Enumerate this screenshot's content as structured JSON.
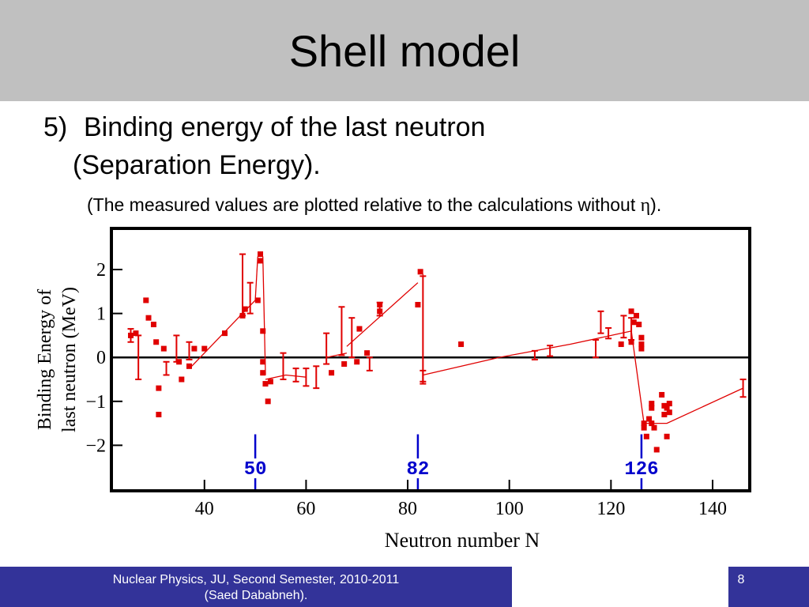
{
  "slide": {
    "title": "Shell model",
    "item_number": "5)",
    "heading_line1": "Binding energy of the last neutron",
    "heading_line2": "(Separation Energy).",
    "note_prefix": "(The measured values are plotted relative to the calculations without ",
    "note_symbol": "η",
    "note_suffix": ")."
  },
  "footer": {
    "line1": "Nuclear Physics, JU, Second Semester, 2010-2011",
    "line2": "(Saed Dababneh).",
    "page_number": "8"
  },
  "colors": {
    "data": "#e00000",
    "magic": "#0000cc",
    "axis": "#000000",
    "title_bar": "#c0c0c0",
    "footer_bar": "#333399"
  },
  "chart_data": {
    "type": "scatter",
    "xlabel": "Neutron number N",
    "ylabel_line1": "Binding Energy of",
    "ylabel_line2": "last neutron (MeV)",
    "xlim": [
      22,
      147
    ],
    "ylim": [
      -3,
      2.9
    ],
    "xticks": [
      40,
      60,
      80,
      100,
      120,
      140
    ],
    "yticks": [
      -2,
      -1,
      0,
      1,
      2
    ],
    "zero_line": true,
    "magic_numbers": [
      {
        "n": 50,
        "label": "50"
      },
      {
        "n": 82,
        "label": "82"
      },
      {
        "n": 126,
        "label": "126"
      }
    ],
    "points": [
      [
        25.5,
        0.5
      ],
      [
        26.5,
        0.55
      ],
      [
        28.5,
        1.3
      ],
      [
        29,
        0.9
      ],
      [
        30,
        0.75
      ],
      [
        30.5,
        0.35
      ],
      [
        31,
        -0.7
      ],
      [
        31,
        -1.3
      ],
      [
        32,
        0.2
      ],
      [
        35,
        -0.1
      ],
      [
        35.5,
        -0.5
      ],
      [
        37,
        -0.2
      ],
      [
        38,
        0.2
      ],
      [
        40,
        0.2
      ],
      [
        44,
        0.55
      ],
      [
        47.5,
        0.95
      ],
      [
        48,
        1.1
      ],
      [
        51,
        2.35
      ],
      [
        51,
        2.2
      ],
      [
        50.5,
        1.3
      ],
      [
        51.5,
        0.6
      ],
      [
        51.5,
        -0.1
      ],
      [
        51.5,
        -0.35
      ],
      [
        52,
        -0.6
      ],
      [
        52.5,
        -1
      ],
      [
        53,
        -0.55
      ],
      [
        65,
        -0.35
      ],
      [
        67.5,
        -0.15
      ],
      [
        70,
        -0.1
      ],
      [
        70.5,
        0.65
      ],
      [
        72,
        0.1
      ],
      [
        74.5,
        1.2
      ],
      [
        74.5,
        1.05
      ],
      [
        82,
        1.2
      ],
      [
        82.5,
        1.95
      ],
      [
        90.5,
        0.3
      ],
      [
        122,
        0.3
      ],
      [
        124,
        1.05
      ],
      [
        124,
        0.35
      ],
      [
        124.5,
        0.8
      ],
      [
        125,
        0.95
      ],
      [
        125.5,
        0.75
      ],
      [
        126,
        0.45
      ],
      [
        126,
        0.3
      ],
      [
        126,
        0.2
      ],
      [
        126.5,
        -1.5
      ],
      [
        126.5,
        -1.6
      ],
      [
        127,
        -1.8
      ],
      [
        127.5,
        -1.4
      ],
      [
        128,
        -1.05
      ],
      [
        128,
        -1.15
      ],
      [
        128,
        -1.5
      ],
      [
        128.5,
        -1.6
      ],
      [
        129,
        -2.1
      ],
      [
        130,
        -0.85
      ],
      [
        130.5,
        -1.3
      ],
      [
        130.5,
        -1.1
      ],
      [
        131,
        -1.15
      ],
      [
        131,
        -1.8
      ],
      [
        131.5,
        -1.25
      ],
      [
        131.5,
        -1.05
      ]
    ],
    "errorbars": [
      [
        25.5,
        0.5,
        0.15
      ],
      [
        27,
        0,
        0.5
      ],
      [
        32.5,
        -0.25,
        0.15
      ],
      [
        34.5,
        0.2,
        0.3
      ],
      [
        37,
        0.15,
        0.2
      ],
      [
        47.5,
        1.65,
        0.7
      ],
      [
        49,
        1.35,
        0.35
      ],
      [
        55.5,
        -0.2,
        0.3
      ],
      [
        58,
        -0.4,
        0.15
      ],
      [
        60,
        -0.45,
        0.2
      ],
      [
        62,
        -0.45,
        0.25
      ],
      [
        64,
        0.2,
        0.35
      ],
      [
        67,
        0.6,
        0.55
      ],
      [
        69,
        0.45,
        0.45
      ],
      [
        72.5,
        -0.15,
        0.15
      ],
      [
        74.5,
        1.1,
        0.15
      ],
      [
        83,
        0.65,
        1.2
      ],
      [
        83,
        -0.45,
        0.15
      ],
      [
        105,
        0.05,
        0.1
      ],
      [
        108,
        0.15,
        0.12
      ],
      [
        117,
        0.2,
        0.2
      ],
      [
        118,
        0.8,
        0.25
      ],
      [
        119.5,
        0.55,
        0.12
      ],
      [
        122.5,
        0.7,
        0.25
      ],
      [
        124,
        0.65,
        0.25
      ],
      [
        146,
        -0.7,
        0.2
      ]
    ],
    "theory_lines": [
      [
        [
          37.5,
          -0.2
        ],
        [
          47.5,
          1
        ],
        [
          50,
          1.3
        ]
      ],
      [
        [
          50,
          1.3
        ],
        [
          50.5,
          2.3
        ]
      ],
      [
        [
          51.5,
          2.3
        ],
        [
          52,
          -0.4
        ]
      ],
      [
        [
          52,
          -0.5
        ],
        [
          56,
          -0.4
        ],
        [
          60,
          -0.45
        ]
      ],
      [
        [
          64,
          0
        ],
        [
          68,
          0.1
        ]
      ],
      [
        [
          68,
          0.25
        ],
        [
          82,
          1.7
        ]
      ],
      [
        [
          83,
          1.9
        ],
        [
          83,
          -0.4
        ]
      ],
      [
        [
          83,
          -0.4
        ],
        [
          98,
          0
        ],
        [
          112,
          0.3
        ],
        [
          124,
          0.6
        ]
      ],
      [
        [
          124,
          0.6
        ],
        [
          126.5,
          -1.5
        ],
        [
          131,
          -1.5
        ],
        [
          146,
          -0.7
        ]
      ]
    ]
  }
}
